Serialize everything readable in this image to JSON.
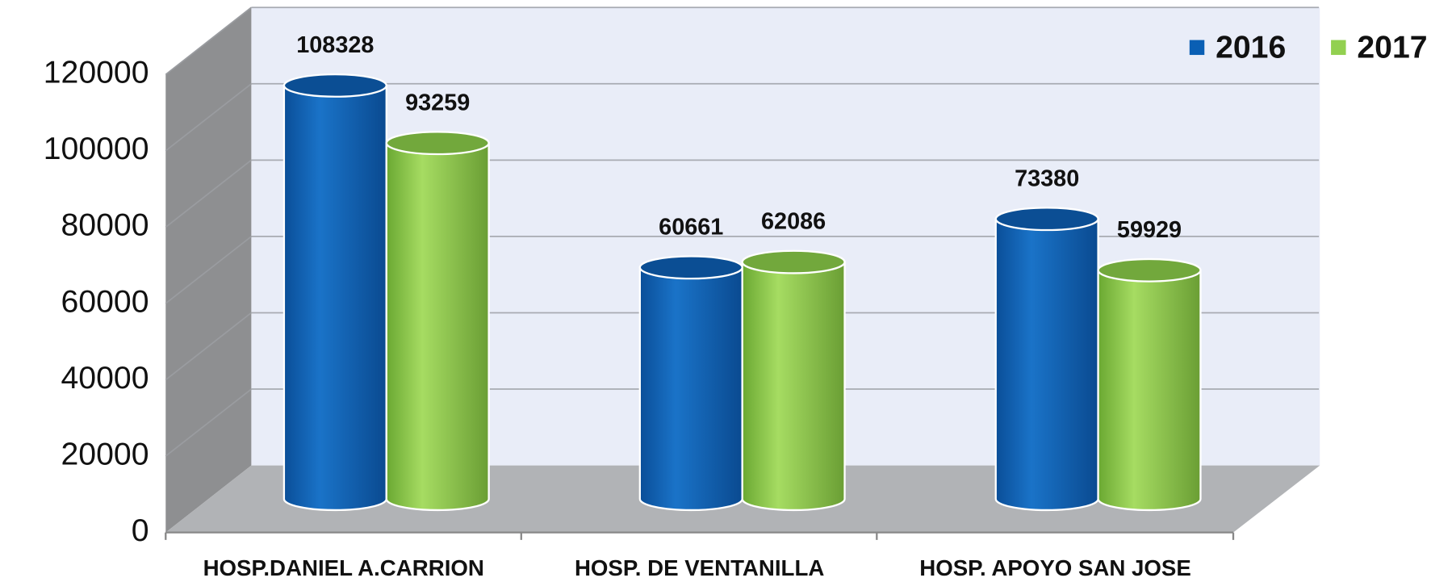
{
  "chart_data": {
    "type": "bar3d",
    "categories": [
      "HOSP.DANIEL A.CARRION",
      "HOSP. DE VENTANILLA",
      "HOSP. APOYO SAN JOSE"
    ],
    "series": [
      {
        "name": "2016",
        "color": "#0a5fb4",
        "values": [
          108328,
          60661,
          73380
        ]
      },
      {
        "name": "2017",
        "color": "#92d050",
        "values": [
          93259,
          62086,
          59929
        ]
      }
    ],
    "ylim": [
      0,
      120000
    ],
    "yticks": [
      0,
      20000,
      40000,
      60000,
      80000,
      100000,
      120000
    ],
    "grid": true,
    "legend": "top-right"
  }
}
